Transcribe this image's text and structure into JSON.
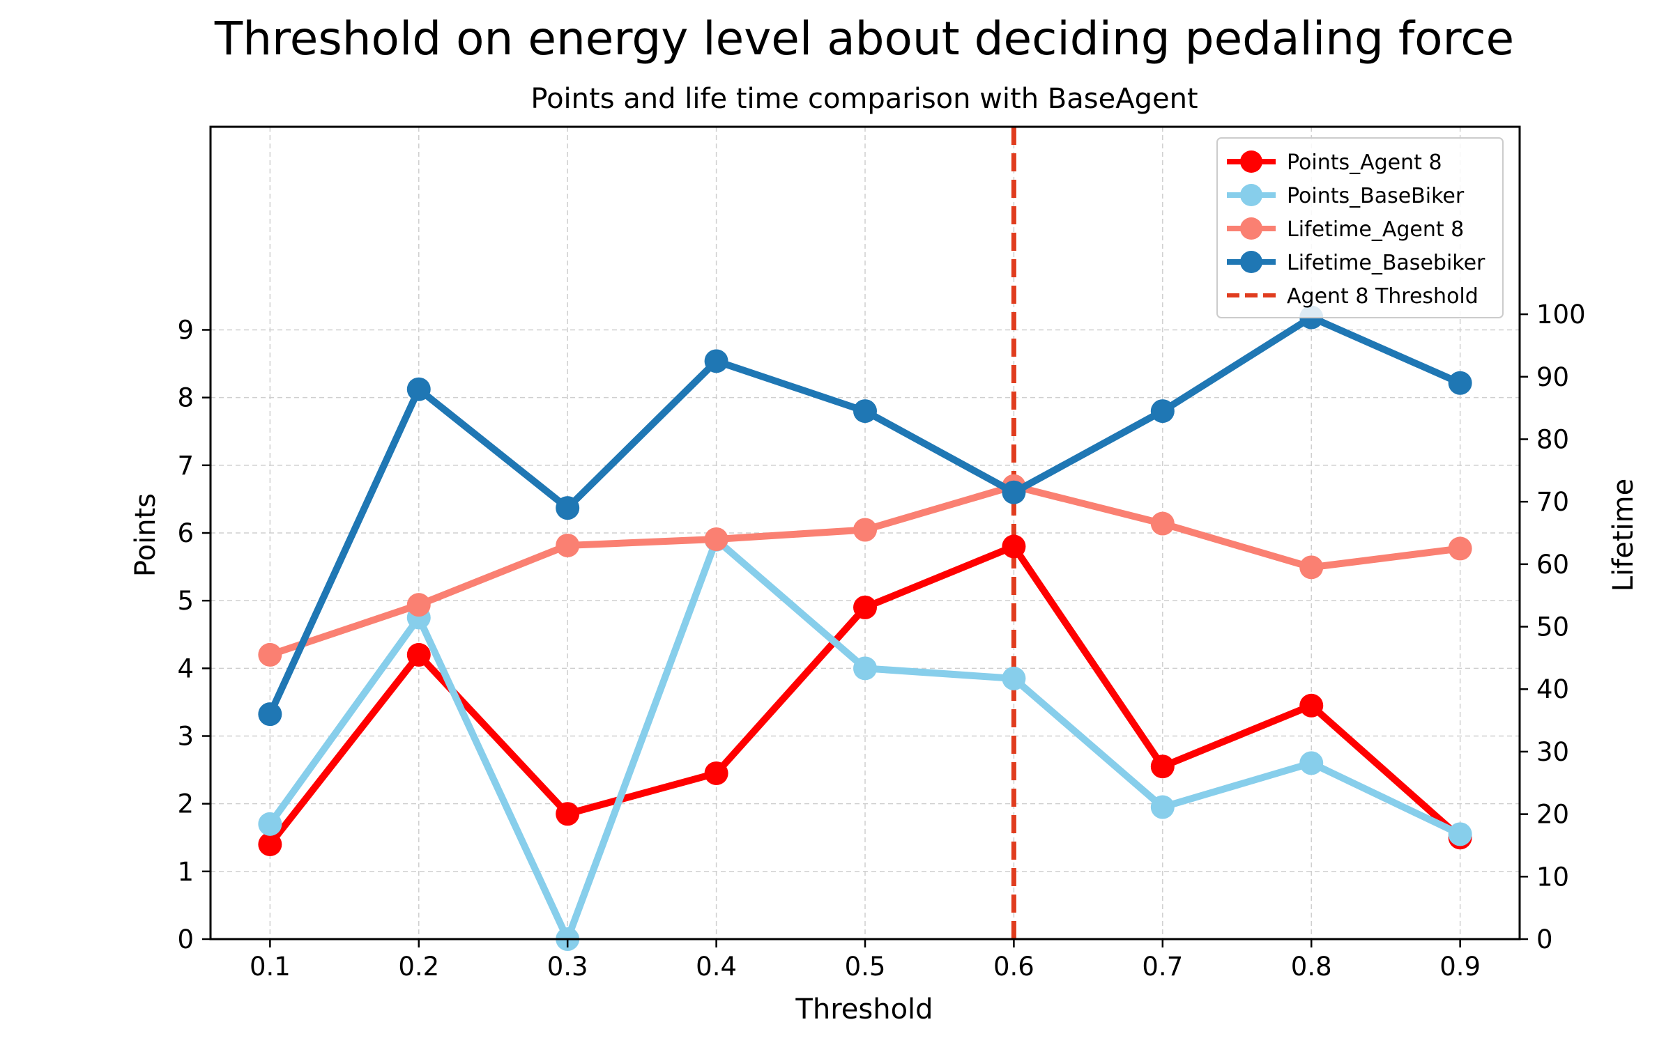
{
  "chart_data": {
    "type": "line",
    "title": "Threshold on energy level about deciding pedaling force",
    "subtitle": "Points and life time comparison with BaseAgent",
    "xlabel": "Threshold",
    "ylabel": "Points",
    "y2label": "Lifetime",
    "x": [
      0.1,
      0.2,
      0.3,
      0.4,
      0.5,
      0.6,
      0.7,
      0.8,
      0.9
    ],
    "x_tick_labels": [
      "0.1",
      "0.2",
      "0.3",
      "0.4",
      "0.5",
      "0.6",
      "0.7",
      "0.8",
      "0.9"
    ],
    "xlim": [
      0.06,
      0.94
    ],
    "ylim": [
      0,
      12
    ],
    "y_ticks": [
      0,
      1,
      2,
      3,
      4,
      5,
      6,
      7,
      8,
      9
    ],
    "y2lim": [
      0,
      130
    ],
    "y2_ticks": [
      0,
      10,
      20,
      30,
      40,
      50,
      60,
      70,
      80,
      90,
      100
    ],
    "grid": true,
    "legend_position": "top-right",
    "series": [
      {
        "name": "Points_Agent 8",
        "axis": "left",
        "color": "#ff0000",
        "values": [
          1.4,
          4.2,
          1.85,
          2.45,
          4.9,
          5.8,
          2.55,
          3.45,
          1.5
        ]
      },
      {
        "name": "Points_BaseBiker",
        "axis": "left",
        "color": "#87ceeb",
        "values": [
          1.7,
          4.75,
          0.0,
          5.9,
          4.0,
          3.85,
          1.95,
          2.6,
          1.55
        ]
      },
      {
        "name": "Lifetime_Agent 8",
        "axis": "right",
        "color": "#fa8072",
        "values": [
          45.5,
          53.5,
          63,
          64,
          65.5,
          72.5,
          66.5,
          59.5,
          62.5
        ]
      },
      {
        "name": "Lifetime_Basebiker",
        "axis": "right",
        "color": "#1f77b4",
        "values": [
          36,
          88,
          69,
          92.5,
          84.5,
          71.5,
          84.5,
          99.5,
          89
        ]
      }
    ],
    "threshold_line": {
      "name": "Agent 8 Threshold",
      "x": 0.6,
      "color": "#e03c1e"
    }
  }
}
